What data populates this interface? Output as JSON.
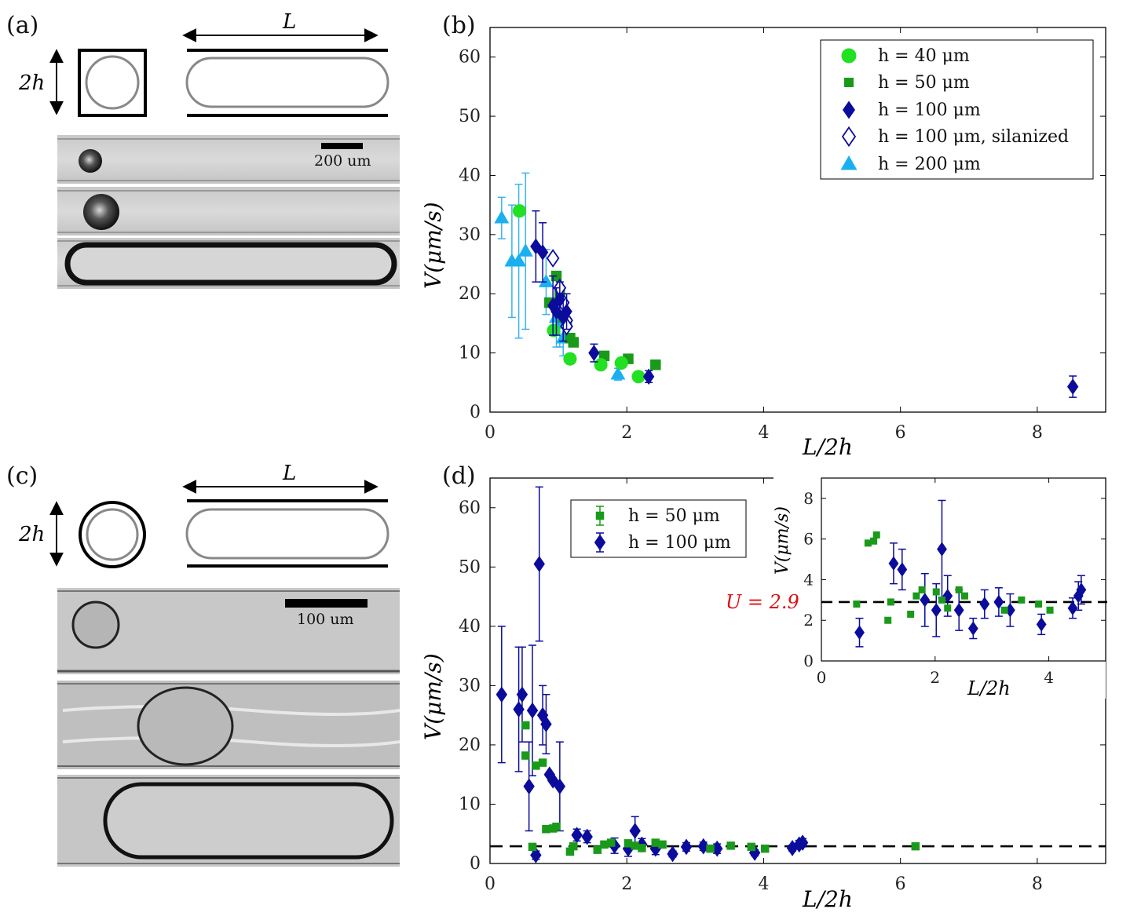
{
  "panels": {
    "a": {
      "label": "(a)",
      "length_label": "L",
      "height_label": "2h",
      "scale_bar": "200 um"
    },
    "b": {
      "label": "(b)"
    },
    "c": {
      "label": "(c)",
      "length_label": "L",
      "height_label": "2h",
      "scale_bar": "100 um"
    },
    "d": {
      "label": "(d)",
      "u_label": "U = 2.9"
    }
  },
  "colors": {
    "h40": "#22e022",
    "h50": "#1a9a1a",
    "h100": "#0b0b9c",
    "h200": "#1ab0f0",
    "h200err": "#3ab4ec",
    "dashed": "#000000",
    "u_label": "#e01010"
  },
  "chart_data": [
    {
      "id": "b",
      "type": "scatter",
      "xlabel": "L/2h",
      "ylabel": "V(μm/s)",
      "xlim": [
        0,
        9
      ],
      "ylim": [
        0,
        65
      ],
      "xticks": [
        0,
        2,
        4,
        6,
        8
      ],
      "yticks": [
        0,
        10,
        20,
        30,
        40,
        50,
        60
      ],
      "legend_position": "top-right",
      "series": [
        {
          "name": "h = 40 μm",
          "marker": "circle",
          "color_key": "h40",
          "points": [
            [
              0.43,
              34
            ],
            [
              0.93,
              13.8
            ],
            [
              1.17,
              9
            ],
            [
              1.62,
              8
            ],
            [
              1.92,
              8.3
            ],
            [
              2.17,
              6
            ]
          ]
        },
        {
          "name": "h = 50 μm",
          "marker": "square",
          "color_key": "h50",
          "points": [
            [
              0.87,
              18.5
            ],
            [
              0.97,
              23
            ],
            [
              1.02,
              20
            ],
            [
              1.07,
              16
            ],
            [
              1.12,
              15
            ],
            [
              1.17,
              12.5
            ],
            [
              1.22,
              11.8
            ],
            [
              1.67,
              9.5
            ],
            [
              2.02,
              9
            ],
            [
              2.42,
              8
            ]
          ]
        },
        {
          "name": "h = 100 μm",
          "marker": "diamond",
          "color_key": "h100",
          "points": [
            [
              0.67,
              28
            ],
            [
              0.77,
              27
            ],
            [
              0.92,
              18
            ],
            [
              0.97,
              17
            ],
            [
              1.02,
              19
            ],
            [
              1.07,
              16
            ],
            [
              1.12,
              17
            ],
            [
              1.52,
              10
            ],
            [
              2.32,
              6
            ],
            [
              8.52,
              4.3
            ]
          ],
          "errors": [
            6,
            5,
            5,
            4,
            3,
            4,
            3,
            1.5,
            1,
            1.8
          ]
        },
        {
          "name": "h = 100 μm, silanized",
          "marker": "diamond-open",
          "color_key": "h100",
          "points": [
            [
              0.92,
              26
            ],
            [
              1.02,
              21
            ],
            [
              1.07,
              18.5
            ],
            [
              1.12,
              15.5
            ],
            [
              1.12,
              14.5
            ]
          ]
        },
        {
          "name": "h = 200 μm",
          "marker": "triangle",
          "color_key": "h200",
          "points": [
            [
              0.17,
              32.8
            ],
            [
              0.32,
              25.5
            ],
            [
              0.42,
              25.5
            ],
            [
              0.52,
              27.2
            ],
            [
              0.82,
              22
            ],
            [
              0.97,
              16
            ],
            [
              1.02,
              15
            ],
            [
              1.07,
              12.5
            ],
            [
              1.87,
              6.4
            ]
          ],
          "errors": [
            3.5,
            9.5,
            13,
            13.2,
            5.5,
            5,
            4,
            3,
            1
          ]
        }
      ]
    },
    {
      "id": "d",
      "type": "scatter",
      "xlabel": "L/2h",
      "ylabel": "V(μm/s)",
      "xlim": [
        0,
        9
      ],
      "ylim": [
        0,
        65
      ],
      "xticks": [
        0,
        2,
        4,
        6,
        8
      ],
      "yticks": [
        0,
        10,
        20,
        30,
        40,
        50,
        60
      ],
      "reference_line": 2.9,
      "legend_position": "top-left",
      "series": [
        {
          "name": "h = 50 μm",
          "marker": "square",
          "color_key": "h50",
          "points": [
            [
              0.52,
              23.3
            ],
            [
              0.52,
              18.2
            ],
            [
              0.62,
              2.8
            ],
            [
              0.67,
              16.5
            ],
            [
              0.77,
              17
            ],
            [
              0.82,
              5.8
            ],
            [
              0.92,
              5.9
            ],
            [
              0.97,
              6.2
            ],
            [
              1.17,
              2
            ],
            [
              1.22,
              2.9
            ],
            [
              1.57,
              2.3
            ],
            [
              1.67,
              3.2
            ],
            [
              1.77,
              3.5
            ],
            [
              2.02,
              3.4
            ],
            [
              2.12,
              3
            ],
            [
              2.22,
              2.6
            ],
            [
              2.42,
              3.5
            ],
            [
              2.52,
              3.2
            ],
            [
              3.22,
              2.5
            ],
            [
              3.52,
              3
            ],
            [
              3.82,
              2.8
            ],
            [
              4.02,
              2.5
            ],
            [
              6.22,
              2.9
            ]
          ],
          "errors": [
            0,
            0,
            0,
            0,
            0,
            0,
            0,
            0,
            0,
            0,
            0,
            0,
            0,
            0,
            0,
            0,
            0,
            0,
            0,
            0,
            0,
            0,
            0
          ]
        },
        {
          "name": "h = 100 μm",
          "marker": "diamond",
          "color_key": "h100",
          "points": [
            [
              0.17,
              28.5
            ],
            [
              0.42,
              26
            ],
            [
              0.47,
              28.5
            ],
            [
              0.57,
              13
            ],
            [
              0.62,
              25.8
            ],
            [
              0.67,
              1.4
            ],
            [
              0.72,
              50.5
            ],
            [
              0.77,
              25
            ],
            [
              0.82,
              23.5
            ],
            [
              0.87,
              15
            ],
            [
              0.92,
              14
            ],
            [
              1.02,
              13
            ],
            [
              1.27,
              4.8
            ],
            [
              1.42,
              4.5
            ],
            [
              1.82,
              3
            ],
            [
              2.02,
              2.5
            ],
            [
              2.12,
              5.5
            ],
            [
              2.22,
              3.2
            ],
            [
              2.42,
              2.5
            ],
            [
              2.67,
              1.6
            ],
            [
              2.87,
              2.8
            ],
            [
              3.12,
              2.9
            ],
            [
              3.32,
              2.5
            ],
            [
              3.87,
              1.8
            ],
            [
              4.42,
              2.6
            ],
            [
              4.52,
              3.2
            ],
            [
              4.57,
              3.5
            ]
          ],
          "errors": [
            11.5,
            10.5,
            8,
            7.5,
            11,
            0.7,
            13,
            5,
            5,
            0,
            0,
            7.5,
            1,
            1,
            1.3,
            1.3,
            2.4,
            1,
            1,
            0.5,
            0.7,
            0.7,
            0.8,
            0.5,
            0.5,
            0.7,
            0.7
          ]
        }
      ],
      "inset": {
        "xlabel": "L/2h",
        "ylabel": "V(μm/s)",
        "xlim": [
          0,
          5
        ],
        "ylim": [
          0,
          9
        ],
        "xticks": [
          0,
          2,
          4
        ],
        "yticks": [
          0,
          2,
          4,
          6,
          8
        ],
        "reference_line": 2.9
      }
    }
  ]
}
